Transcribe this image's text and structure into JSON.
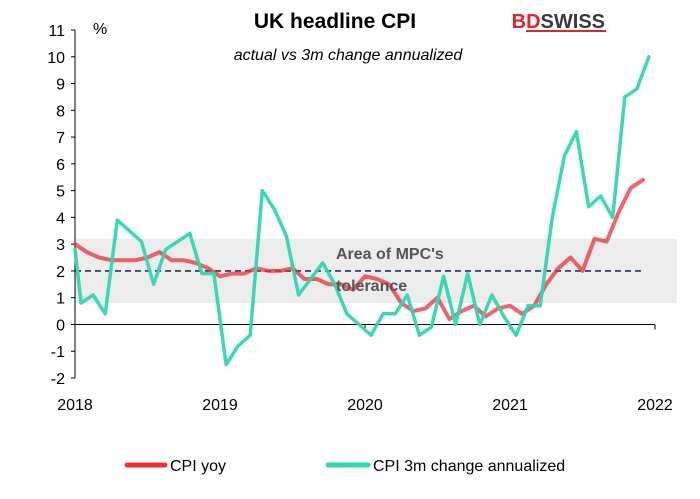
{
  "chart_data": {
    "type": "line",
    "title": "UK headline CPI",
    "subtitle": "actual vs 3m change annualized",
    "unit": "%",
    "ylim": [
      -2,
      11
    ],
    "yticks": [
      -2,
      -1,
      0,
      1,
      2,
      3,
      4,
      5,
      6,
      7,
      8,
      9,
      10,
      11
    ],
    "xlim": [
      2018,
      2022
    ],
    "xticks": [
      2018,
      2019,
      2020,
      2021,
      2022
    ],
    "grid": false,
    "legend": "bottom",
    "band": {
      "low": 0.8,
      "high": 3.2,
      "target": 2,
      "label_line1": "Area of MPC's",
      "label_line2": "tolerance"
    },
    "series": [
      {
        "name": "CPI yoy",
        "color": "#e8323a",
        "x": [
          2018.0,
          2018.083,
          2018.167,
          2018.25,
          2018.333,
          2018.417,
          2018.5,
          2018.583,
          2018.667,
          2018.75,
          2018.833,
          2018.917,
          2019.0,
          2019.083,
          2019.167,
          2019.25,
          2019.333,
          2019.417,
          2019.5,
          2019.583,
          2019.667,
          2019.75,
          2019.833,
          2019.917,
          2020.0,
          2020.083,
          2020.167,
          2020.25,
          2020.333,
          2020.417,
          2020.5,
          2020.583,
          2020.667,
          2020.75,
          2020.833,
          2020.917,
          2021.0,
          2021.083,
          2021.167,
          2021.25,
          2021.333,
          2021.417,
          2021.5,
          2021.583,
          2021.667,
          2021.75,
          2021.833,
          2021.917
        ],
        "values": [
          3.0,
          2.7,
          2.5,
          2.4,
          2.4,
          2.4,
          2.5,
          2.7,
          2.4,
          2.4,
          2.3,
          2.1,
          1.8,
          1.9,
          1.9,
          2.1,
          2.0,
          2.0,
          2.1,
          1.7,
          1.7,
          1.5,
          1.5,
          1.3,
          1.8,
          1.7,
          1.5,
          0.8,
          0.5,
          0.6,
          1.0,
          0.2,
          0.5,
          0.7,
          0.3,
          0.6,
          0.7,
          0.4,
          0.7,
          1.5,
          2.1,
          2.5,
          2.0,
          3.2,
          3.1,
          4.2,
          5.1,
          5.4
        ]
      },
      {
        "name": "CPI 3m change annualized",
        "color": "#2fd6b0",
        "x": [
          2018.0,
          2018.042,
          2018.125,
          2018.208,
          2018.292,
          2018.375,
          2018.458,
          2018.542,
          2018.625,
          2018.708,
          2018.792,
          2018.875,
          2018.958,
          2019.042,
          2019.125,
          2019.208,
          2019.292,
          2019.375,
          2019.458,
          2019.542,
          2019.625,
          2019.708,
          2019.792,
          2019.875,
          2019.958,
          2020.042,
          2020.125,
          2020.208,
          2020.292,
          2020.375,
          2020.458,
          2020.542,
          2020.625,
          2020.708,
          2020.792,
          2020.875,
          2020.958,
          2021.042,
          2021.125,
          2021.208,
          2021.292,
          2021.375,
          2021.458,
          2021.542,
          2021.625,
          2021.708,
          2021.792,
          2021.875,
          2021.958
        ],
        "values": [
          2.8,
          0.8,
          1.1,
          0.4,
          3.9,
          3.5,
          3.1,
          1.5,
          2.8,
          3.1,
          3.4,
          1.9,
          1.9,
          -1.5,
          -0.8,
          -0.4,
          5.0,
          4.3,
          3.3,
          1.1,
          1.7,
          2.3,
          1.5,
          0.4,
          0.0,
          -0.4,
          0.4,
          0.4,
          1.1,
          -0.4,
          -0.1,
          1.8,
          0.0,
          1.9,
          0.0,
          1.1,
          0.3,
          -0.4,
          0.7,
          0.7,
          4.0,
          6.3,
          7.2,
          4.4,
          4.8,
          4.0,
          8.5,
          8.8,
          10.0
        ]
      }
    ]
  },
  "logo": {
    "bd": "BD",
    "swiss": "SWISS"
  }
}
